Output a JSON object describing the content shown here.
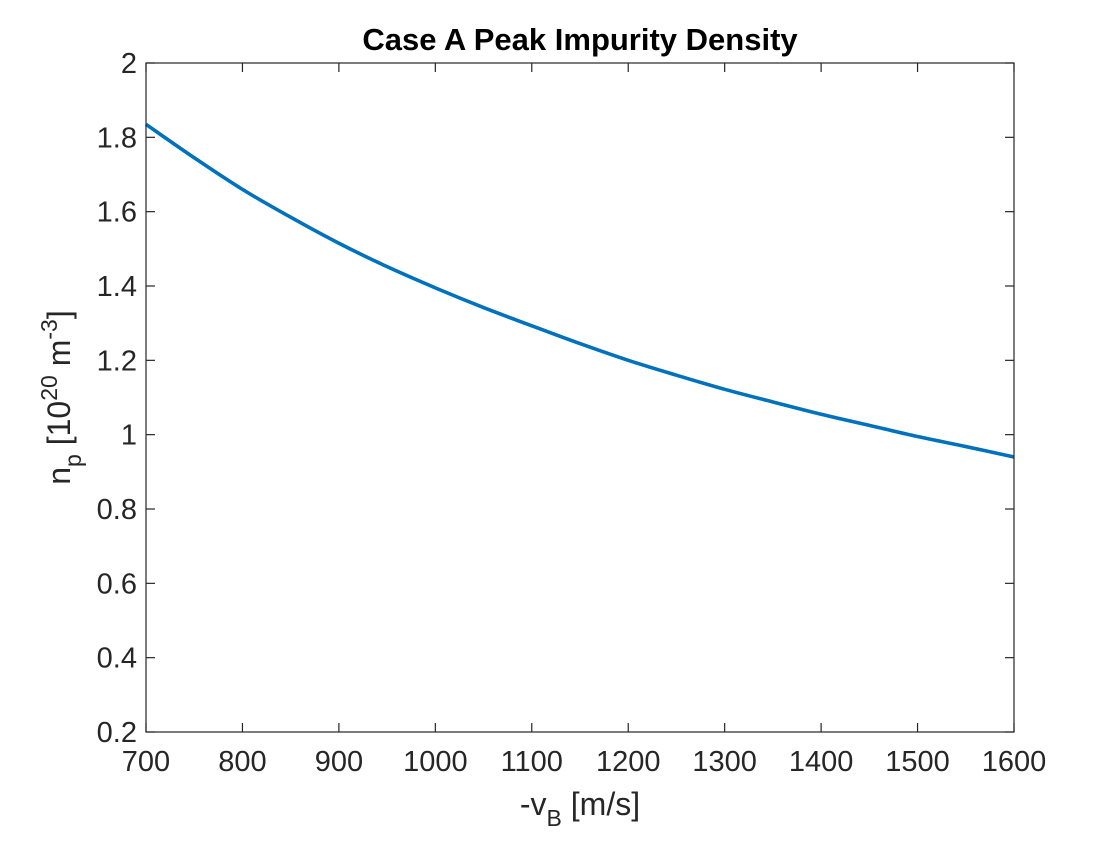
{
  "chart_data": {
    "type": "line",
    "title": "Case A Peak Impurity Density",
    "xlabel": {
      "main": "-v",
      "sub": "B",
      "units": " [m/s]"
    },
    "ylabel": {
      "main": "n",
      "sub": "p",
      "units_prefix": " [10",
      "exponent": "20",
      "units_mid": " m",
      "units_exponent": "-3",
      "units_suffix": "]"
    },
    "xlim": [
      700,
      1600
    ],
    "ylim": [
      0.2,
      2
    ],
    "xticks": [
      700,
      800,
      900,
      1000,
      1100,
      1200,
      1300,
      1400,
      1500,
      1600
    ],
    "xtick_labels": [
      "700",
      "800",
      "900",
      "1000",
      "1100",
      "1200",
      "1300",
      "1400",
      "1500",
      "1600"
    ],
    "yticks": [
      0.2,
      0.4,
      0.6,
      0.8,
      1.0,
      1.2,
      1.4,
      1.6,
      1.8,
      2.0
    ],
    "ytick_labels": [
      "0.2",
      "0.4",
      "0.6",
      "0.8",
      "1",
      "1.2",
      "1.4",
      "1.6",
      "1.8",
      "2"
    ],
    "grid": false,
    "box": true,
    "series": [
      {
        "color": "#0072BD",
        "x": [
          700,
          750,
          800,
          850,
          900,
          950,
          1000,
          1050,
          1100,
          1150,
          1200,
          1250,
          1300,
          1350,
          1400,
          1450,
          1500,
          1550,
          1600
        ],
        "y": [
          1.835,
          1.745,
          1.66,
          1.585,
          1.515,
          1.452,
          1.395,
          1.342,
          1.293,
          1.245,
          1.2,
          1.16,
          1.122,
          1.088,
          1.055,
          1.025,
          0.995,
          0.968,
          0.94
        ]
      }
    ]
  }
}
